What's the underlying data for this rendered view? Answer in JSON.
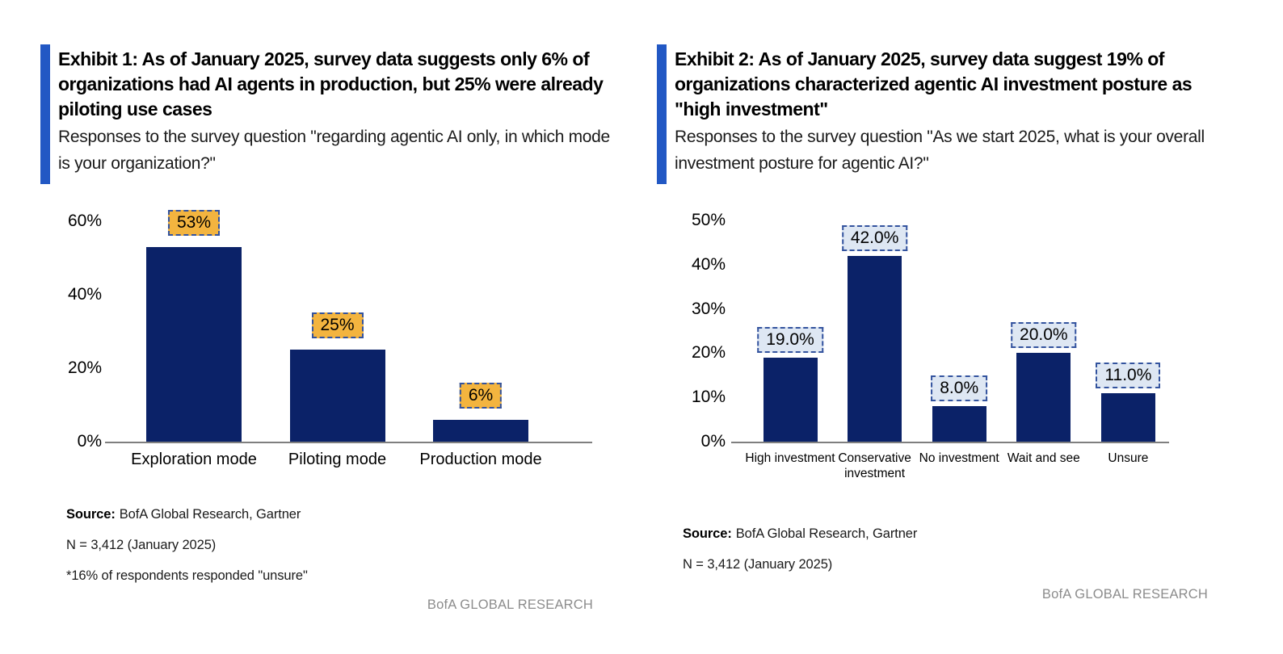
{
  "exhibits": [
    {
      "title": "Exhibit 1: As of January 2025, survey data suggests only 6% of organizations had AI agents in production, but 25% were already piloting use cases",
      "subtitle": "Responses to the survey question \"regarding agentic AI only, in which mode is your organization?\"",
      "source_label": "Source:",
      "source_text": "BofA Global Research, Gartner",
      "sample_note": "N = 3,412 (January 2025)",
      "footnote": "*16% of respondents responded \"unsure\"",
      "brand": "BofA GLOBAL RESEARCH"
    },
    {
      "title": "Exhibit 2: As of January 2025, survey data suggest 19% of organizations characterized agentic AI investment posture as \"high investment\"",
      "subtitle": "Responses to the survey question \"As we start 2025, what is your overall investment posture for agentic AI?\"",
      "source_label": "Source:",
      "source_text": "BofA Global Research, Gartner",
      "sample_note": "N = 3,412 (January 2025)",
      "brand": "BofA GLOBAL RESEARCH"
    }
  ],
  "chart_data": [
    {
      "type": "bar",
      "title": "Exhibit 1: AI agent adoption mode (January 2025 survey)",
      "categories": [
        "Exploration mode",
        "Piloting mode",
        "Production mode"
      ],
      "values": [
        53,
        25,
        6
      ],
      "value_labels": [
        "53%",
        "25%",
        "6%"
      ],
      "yticks": [
        "0%",
        "20%",
        "40%",
        "60%"
      ],
      "ylim": [
        0,
        60
      ],
      "xlabel": "",
      "ylabel": "",
      "grid": false,
      "legend": false,
      "bar_color": "#0B2268",
      "value_label_fill": "#F3B43F",
      "value_label_border": "#33539E"
    },
    {
      "type": "bar",
      "title": "Exhibit 2: Agentic AI investment posture (January 2025 survey)",
      "categories": [
        "High investment",
        "Conservative investment",
        "No investment",
        "Wait and see",
        "Unsure"
      ],
      "values": [
        19,
        42,
        8,
        20,
        11
      ],
      "value_labels": [
        "19.0%",
        "42.0%",
        "8.0%",
        "20.0%",
        "11.0%"
      ],
      "yticks": [
        "0%",
        "10%",
        "20%",
        "30%",
        "40%",
        "50%"
      ],
      "ylim": [
        0,
        50
      ],
      "xlabel": "",
      "ylabel": "",
      "grid": false,
      "legend": false,
      "bar_color": "#0B2268",
      "value_label_fill": "#DEE7F3",
      "value_label_border": "#33539E"
    }
  ],
  "colors": {
    "accent_bar": "#2258C4",
    "bar_navy": "#0B2268",
    "axis_gray": "#7F7F7F",
    "brand_gray": "#8C8C8C",
    "amber_label": "#F3B43F",
    "blue_label": "#DEE7F3"
  }
}
